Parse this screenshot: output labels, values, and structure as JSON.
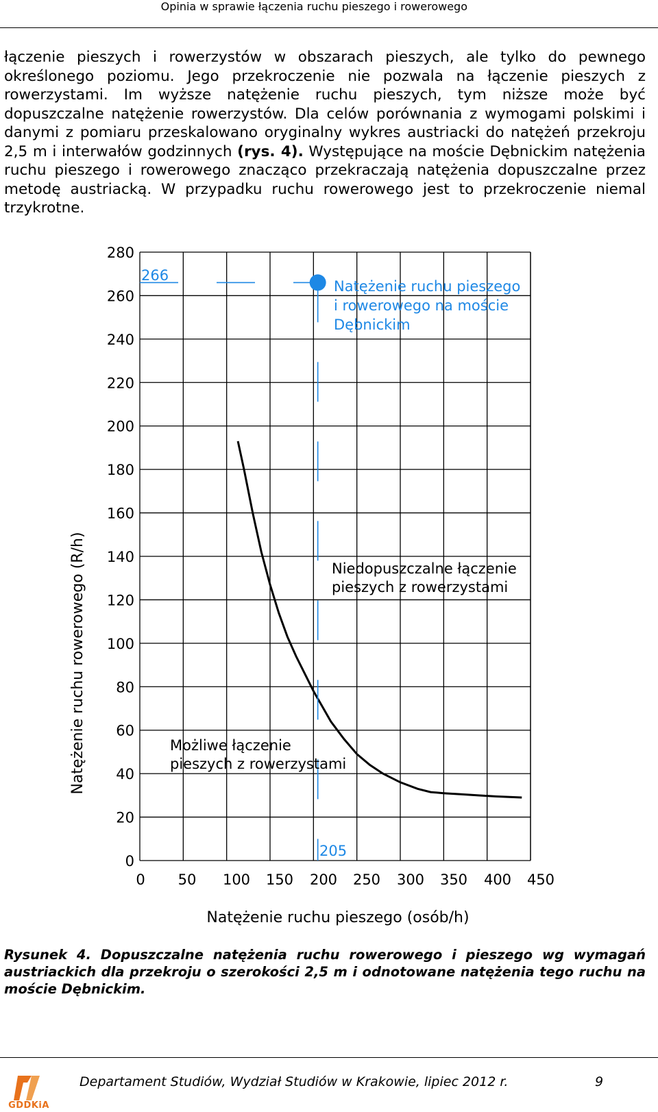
{
  "header": {
    "title": "Opinia w sprawie łączenia ruchu pieszego i rowerowego"
  },
  "body": {
    "part1": "łączenie pieszych i rowerzystów w obszarach pieszych, ale tylko do pewnego określonego poziomu. Jego przekroczenie nie pozwala na łączenie pieszych z rowerzystami. Im wyższe natężenie ruchu pieszych, tym niższe może być dopuszczalne natężenie rowerzystów. Dla celów porównania z wymogami polskimi i danymi z pomiaru przeskalowano oryginalny wykres austriacki do natężeń przekroju 2,5 m i interwałów godzinnych ",
    "ref": "(rys. 4).",
    "part2": " Występujące na moście Dębnickim natężenia ruchu pieszego i rowerowego znacząco przekraczają natężenia dopuszczalne przez metodę austriacką. W przypadku ruchu rowerowego jest to przekroczenie niemal trzykrotne."
  },
  "chart_data": {
    "type": "line",
    "xlabel": "Natężenie ruchu pieszego (osób/h)",
    "ylabel": "Natężenie ruchu rowerowego (R/h)",
    "xlim": [
      0,
      450
    ],
    "ylim": [
      0,
      280
    ],
    "x_ticks": [
      0,
      50,
      100,
      150,
      200,
      250,
      300,
      350,
      400,
      450
    ],
    "y_ticks": [
      0,
      20,
      40,
      60,
      80,
      100,
      120,
      140,
      160,
      180,
      200,
      220,
      240,
      260,
      280
    ],
    "grid": true,
    "series": [
      {
        "x": [
          113,
          120,
          130,
          140,
          150,
          160,
          170,
          180,
          190,
          200,
          210,
          220,
          235,
          250,
          265,
          280,
          300,
          320,
          335,
          350,
          370,
          390,
          410,
          440
        ],
        "y": [
          193,
          180,
          160,
          142,
          127,
          114,
          103,
          94,
          86,
          78,
          71,
          64,
          56,
          49,
          44,
          40,
          36,
          33,
          31.5,
          31,
          30.5,
          30,
          29.5,
          29
        ]
      }
    ],
    "points": [
      {
        "x": 205,
        "y": 266,
        "color": "#1e88e5",
        "label": "Natężenie ruchu pieszego i rowerowego na moście Dębnickim"
      }
    ],
    "point_value_labels": {
      "x": "205",
      "y": "266"
    },
    "regions": [
      {
        "label": "Niedopuszczalne łączenie pieszych z rowerzystami"
      },
      {
        "label": "Możliwe łączenie pieszych z rowerzystami"
      }
    ],
    "colors": {
      "curve": "#000000",
      "marker": "#1e88e5",
      "grid": "#000000"
    }
  },
  "caption": "Rysunek 4. Dopuszczalne natężenia ruchu rowerowego i pieszego wg wymagań austriackich dla przekroju o szerokości 2,5 m i odnotowane natężenia tego ruchu na moście Dębnickim.",
  "footer": {
    "text": "Departament Studiów, Wydział Studiów w Krakowie, lipiec 2012 r.",
    "page": "9",
    "logo_text": "GDDKiA",
    "logo_icon": "gddkia-logo-icon"
  }
}
